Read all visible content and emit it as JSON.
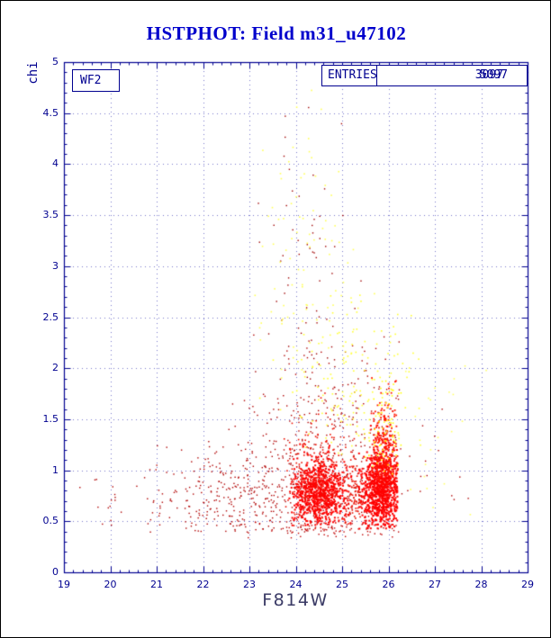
{
  "page": {
    "background": "#ffffff",
    "border_color": "#000000"
  },
  "title": {
    "text": "HSTPHOT: Field m31_u47102",
    "color": "#0000cc"
  },
  "detector_box": {
    "label": "WF2"
  },
  "stats_box": {
    "label": "ENTRIES",
    "values": [
      "3097",
      "5097"
    ]
  },
  "chart_data": {
    "type": "scatter",
    "title": "HSTPHOT: Field m31_u47102",
    "xlabel": "F814W",
    "ylabel": "chi",
    "xlim": [
      19,
      29
    ],
    "ylim": [
      0,
      5
    ],
    "x_ticks": [
      19,
      20,
      21,
      22,
      23,
      24,
      25,
      26,
      27,
      28,
      29
    ],
    "x_tick_labels": [
      "19",
      "20",
      "21",
      "22",
      "23",
      "24",
      "25",
      "26",
      "27",
      "28",
      "29"
    ],
    "y_ticks": [
      0,
      0.5,
      1,
      1.5,
      2,
      2.5,
      3,
      3.5,
      4,
      4.5,
      5
    ],
    "y_tick_labels": [
      "0",
      "0.5",
      "1",
      "1.5",
      "2",
      "2.5",
      "3",
      "3.5",
      "4",
      "4.5",
      "5"
    ],
    "grid": true,
    "legend": null,
    "colors": {
      "frame": "#000090",
      "grid": "#7777cc",
      "tick_labels": "#000090",
      "axis_label": "#3b3b66",
      "point_red": "#ff0000",
      "point_dark_red": "#b00000",
      "point_yellow": "#ffff33"
    },
    "seed": 42,
    "point_clusters": [
      {
        "name": "dark-red-spread",
        "color": "#b00000",
        "n": 480,
        "x_mean": 23.3,
        "x_sd": 1.35,
        "y_mean": 0.75,
        "y_sd": 0.24,
        "clip": [
          20.6,
          26.3,
          0.38,
          1.7
        ],
        "size": 1.4
      },
      {
        "name": "dark-red-left-sparse",
        "color": "#b00000",
        "n": 26,
        "x_mean": 20.4,
        "x_sd": 0.9,
        "y_mean": 0.72,
        "y_sd": 0.2,
        "clip": [
          19.05,
          21.2,
          0.4,
          1.15
        ],
        "size": 1.4
      },
      {
        "name": "dark-red-mid-band",
        "color": "#b00000",
        "n": 260,
        "x_mean": 24.8,
        "x_sd": 0.95,
        "y_mean": 1.35,
        "y_sd": 0.45,
        "clip": [
          22.6,
          26.3,
          0.8,
          2.9
        ],
        "size": 1.4
      },
      {
        "name": "dark-red-chimney",
        "color": "#a00000",
        "n": 70,
        "x_mean": 24.3,
        "x_sd": 0.55,
        "y_mean": 2.6,
        "y_sd": 0.85,
        "clip": [
          23.0,
          26.2,
          1.8,
          4.6
        ],
        "size": 1.4
      },
      {
        "name": "dark-red-right-sparse",
        "color": "#b00000",
        "n": 14,
        "x_mean": 27.0,
        "x_sd": 0.7,
        "y_mean": 0.9,
        "y_sd": 0.4,
        "clip": [
          26.35,
          28.6,
          0.4,
          2.0
        ],
        "size": 1.4
      },
      {
        "name": "bottom-edge",
        "color": "#c00000",
        "n": 90,
        "x_mean": 24.9,
        "x_sd": 1.05,
        "y_mean": 0.43,
        "y_sd": 0.05,
        "clip": [
          22.7,
          26.3,
          0.33,
          0.52
        ],
        "size": 1.4
      },
      {
        "name": "red-core-left",
        "color": "#ff0000",
        "n": 750,
        "x_mean": 24.5,
        "x_sd": 0.3,
        "y_mean": 0.78,
        "y_sd": 0.16,
        "clip": [
          23.85,
          25.2,
          0.45,
          1.3
        ],
        "size": 2
      },
      {
        "name": "red-core-left-halo",
        "color": "#ee1100",
        "n": 220,
        "x_mean": 24.5,
        "x_sd": 0.38,
        "y_mean": 0.9,
        "y_sd": 0.3,
        "clip": [
          23.75,
          25.3,
          0.42,
          1.9
        ],
        "size": 1.6
      },
      {
        "name": "red-bridge",
        "color": "#e81000",
        "n": 90,
        "x_mean": 25.25,
        "x_sd": 0.12,
        "y_mean": 0.72,
        "y_sd": 0.16,
        "clip": [
          25.05,
          25.45,
          0.45,
          1.2
        ],
        "size": 1.6
      },
      {
        "name": "red-core-right",
        "color": "#ff0000",
        "n": 950,
        "x_mean": 25.85,
        "x_sd": 0.23,
        "y_mean": 0.82,
        "y_sd": 0.2,
        "clip": [
          25.35,
          26.2,
          0.42,
          1.45
        ],
        "size": 2
      },
      {
        "name": "red-core-right-top",
        "color": "#ff1500",
        "n": 210,
        "x_mean": 25.92,
        "x_sd": 0.16,
        "y_mean": 1.25,
        "y_sd": 0.26,
        "clip": [
          25.5,
          26.2,
          0.85,
          1.95
        ],
        "size": 1.8
      },
      {
        "name": "yellow-band",
        "color": "#ffff33",
        "n": 150,
        "x_mean": 25.3,
        "x_sd": 0.85,
        "y_mean": 1.8,
        "y_sd": 0.42,
        "clip": [
          23.2,
          26.8,
          1.15,
          3.0
        ],
        "size": 1.6
      },
      {
        "name": "yellow-chimney",
        "color": "#ffff55",
        "n": 90,
        "x_mean": 24.2,
        "x_sd": 0.6,
        "y_mean": 3.0,
        "y_sd": 0.85,
        "clip": [
          23.0,
          26.5,
          1.8,
          4.75
        ],
        "size": 1.6
      },
      {
        "name": "yellow-core-specks",
        "color": "#ffff00",
        "n": 60,
        "x_mean": 25.95,
        "x_sd": 0.2,
        "y_mean": 1.35,
        "y_sd": 0.3,
        "clip": [
          25.4,
          26.3,
          0.8,
          2.0
        ],
        "size": 1.6
      },
      {
        "name": "yellow-right-sparse",
        "color": "#ffff66",
        "n": 22,
        "x_mean": 26.9,
        "x_sd": 0.7,
        "y_mean": 1.3,
        "y_sd": 0.6,
        "clip": [
          26.3,
          28.4,
          0.45,
          2.7
        ],
        "size": 1.6
      }
    ]
  }
}
